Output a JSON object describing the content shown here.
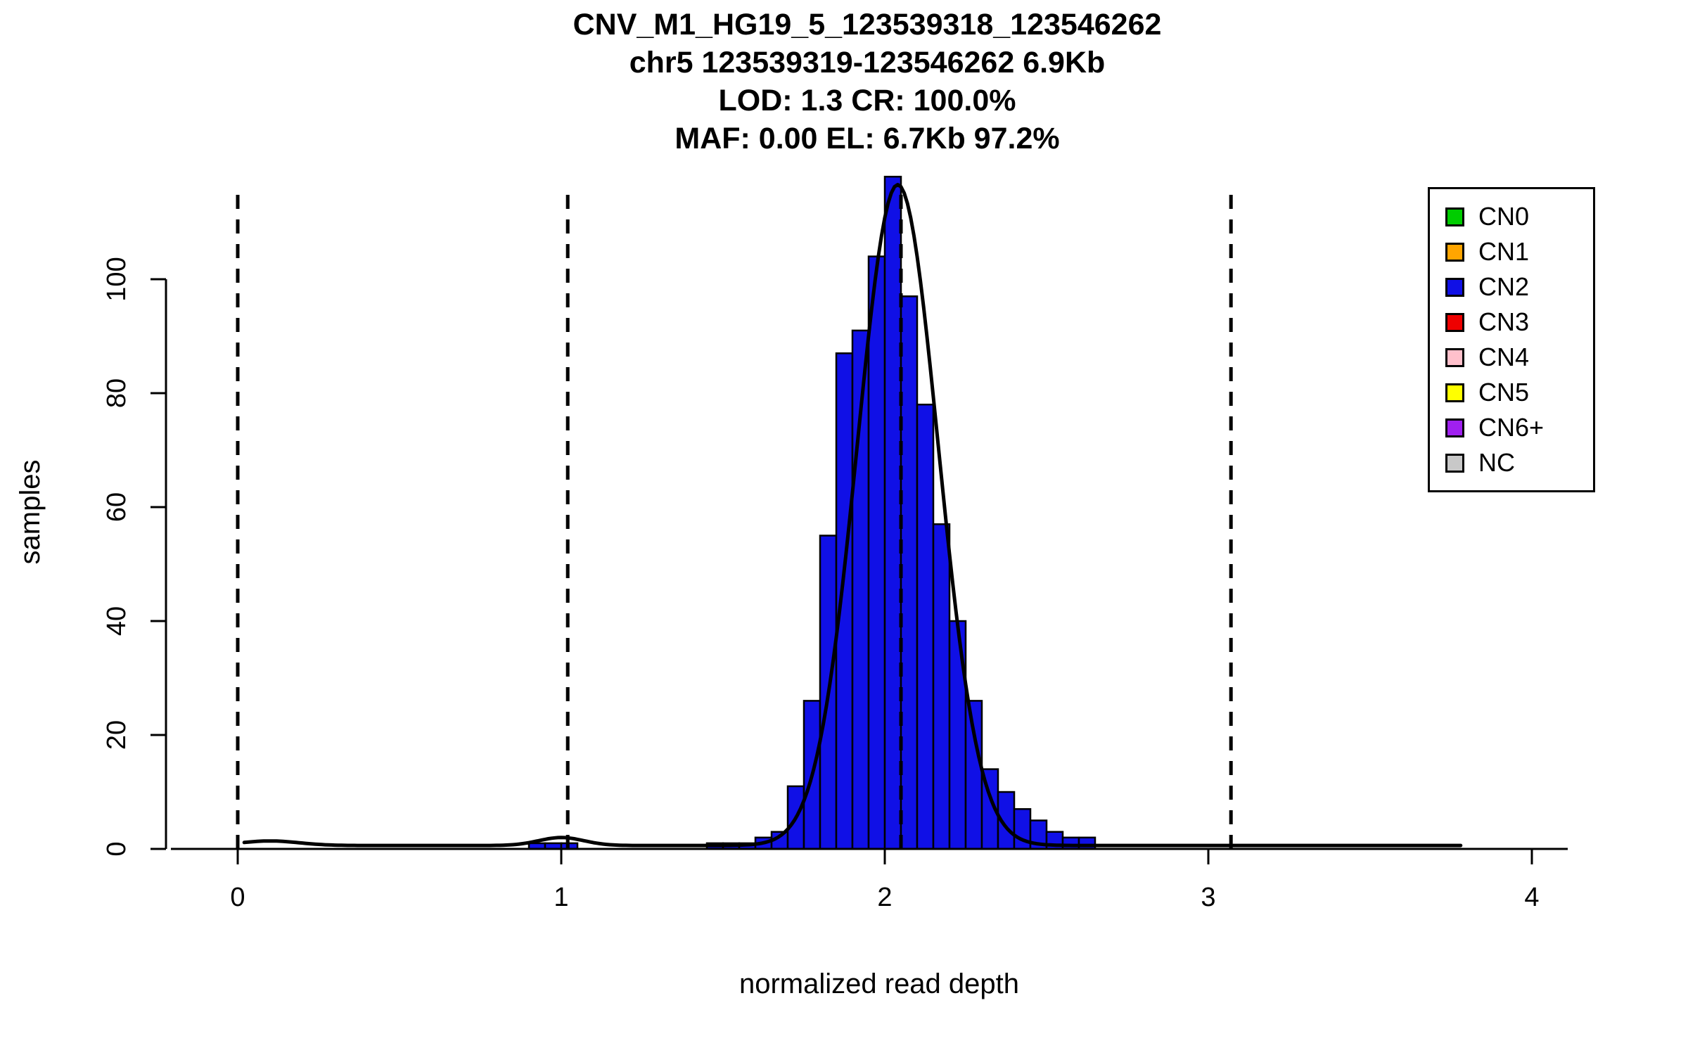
{
  "title": {
    "line1": "CNV_M1_HG19_5_123539318_123546262",
    "line2": "chr5 123539319-123546262 6.9Kb",
    "line3": "LOD: 1.3 CR: 100.0%",
    "line4": "MAF: 0.00 EL: 6.7Kb 97.2%"
  },
  "chart_data": {
    "type": "bar",
    "subtype": "histogram-with-density",
    "title": "CNV_M1_HG19_5_123539318_123546262 / chr5 123539319-123546262 6.9Kb / LOD: 1.3 CR: 100.0% / MAF: 0.00 EL: 6.7Kb 97.2%",
    "xlabel": "normalized read depth",
    "ylabel": "samples",
    "x_ticks": [
      0,
      1,
      2,
      3,
      4
    ],
    "y_ticks": [
      0,
      20,
      40,
      60,
      80,
      100
    ],
    "xlim": [
      -0.2,
      4.15
    ],
    "ylim": [
      0,
      118
    ],
    "grid": false,
    "bin_width": 0.05,
    "bars": {
      "fill": "#1010E6",
      "stroke": "#000000",
      "bin_starts": [
        0.9,
        0.95,
        1.0,
        1.45,
        1.5,
        1.55,
        1.6,
        1.65,
        1.7,
        1.75,
        1.8,
        1.85,
        1.9,
        1.95,
        2.0,
        2.05,
        2.1,
        2.15,
        2.2,
        2.25,
        2.3,
        2.35,
        2.4,
        2.45,
        2.5,
        2.55,
        2.6
      ],
      "counts": [
        1,
        1,
        1,
        1,
        1,
        1,
        2,
        3,
        11,
        26,
        55,
        87,
        91,
        104,
        118,
        97,
        78,
        57,
        40,
        26,
        14,
        10,
        7,
        5,
        3,
        2,
        2
      ]
    },
    "dashed_guides_x": [
      0.0,
      1.02,
      2.05,
      3.07
    ],
    "density_curve": {
      "color": "#000000",
      "baseline": 0.6,
      "range": [
        0.02,
        3.78
      ],
      "components": [
        {
          "mean": 2.04,
          "sd": 0.125,
          "amp": 116
        },
        {
          "mean": 1.0,
          "sd": 0.07,
          "amp": 1.4
        },
        {
          "mean": 0.1,
          "sd": 0.09,
          "amp": 0.8
        }
      ]
    },
    "legend": {
      "position": "top-right",
      "entries": [
        {
          "label": "CN0",
          "color": "#00CD00"
        },
        {
          "label": "CN1",
          "color": "#FFA500"
        },
        {
          "label": "CN2",
          "color": "#1010E6"
        },
        {
          "label": "CN3",
          "color": "#EE0000"
        },
        {
          "label": "CN4",
          "color": "#FFC0CB"
        },
        {
          "label": "CN5",
          "color": "#FFFF00"
        },
        {
          "label": "CN6+",
          "color": "#A020F0"
        },
        {
          "label": "NC",
          "color": "#C8C8C8"
        }
      ]
    }
  }
}
